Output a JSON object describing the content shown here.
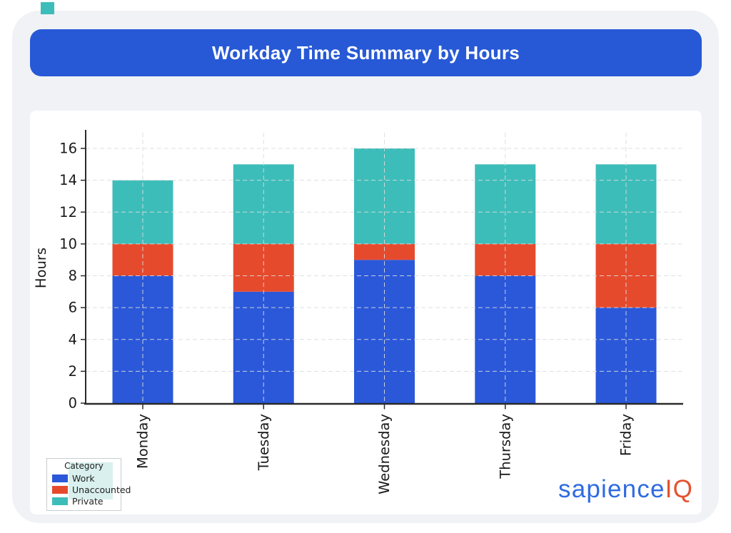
{
  "header": {
    "title": "Workday Time Summary by Hours",
    "background": "#2759d6",
    "text_color": "#ffffff"
  },
  "page": {
    "background": "#ffffff",
    "card_color": "#f0f2f6"
  },
  "brand": {
    "teal_square_color": "#3dbdb9"
  },
  "chart_data": {
    "type": "bar",
    "stacked": true,
    "title": "Workday Time Summary by Hours",
    "categories": [
      "Monday",
      "Tuesday",
      "Wednesday",
      "Thursday",
      "Friday"
    ],
    "series": [
      {
        "name": "Work",
        "color": "#2b58d9",
        "values": [
          8,
          7,
          9,
          8,
          6
        ]
      },
      {
        "name": "Unaccounted",
        "color": "#e64a2d",
        "values": [
          2,
          3,
          1,
          2,
          4
        ]
      },
      {
        "name": "Private",
        "color": "#3dbdb9",
        "values": [
          4,
          5,
          6,
          5,
          5
        ]
      }
    ],
    "totals": [
      14,
      15,
      16,
      15,
      15
    ],
    "xlabel": "",
    "ylabel": "Hours",
    "ylim": [
      0,
      16
    ],
    "yticks": [
      0,
      2,
      4,
      6,
      8,
      10,
      12,
      14,
      16
    ],
    "grid": true,
    "grid_style": "dashed",
    "legend_position": "lower-left"
  },
  "legend": {
    "title": "Category",
    "highlight_color": "#d9f0ee",
    "items": [
      {
        "label": "Work",
        "color": "#2b58d9"
      },
      {
        "label": "Unaccounted",
        "color": "#e64a2d"
      },
      {
        "label": "Private",
        "color": "#3dbdb9"
      }
    ]
  },
  "logo": {
    "text_primary": "sapience",
    "text_accent": "IQ",
    "primary_color": "#2f6be2",
    "accent_color": "#e5512f"
  }
}
